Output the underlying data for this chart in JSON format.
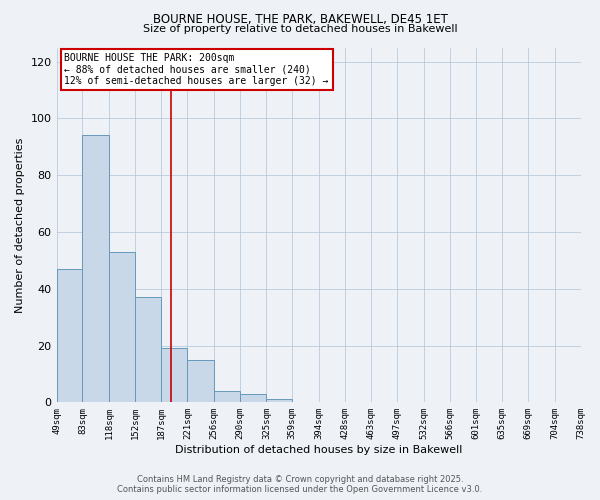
{
  "title1": "BOURNE HOUSE, THE PARK, BAKEWELL, DE45 1ET",
  "title2": "Size of property relative to detached houses in Bakewell",
  "xlabel": "Distribution of detached houses by size in Bakewell",
  "ylabel": "Number of detached properties",
  "bin_edges": [
    49,
    83,
    118,
    152,
    187,
    221,
    256,
    290,
    325,
    359,
    394,
    428,
    463,
    497,
    532,
    566,
    601,
    635,
    669,
    704,
    738
  ],
  "bar_heights": [
    47,
    94,
    53,
    37,
    19,
    15,
    4,
    3,
    1,
    0,
    0,
    0,
    0,
    0,
    0,
    0,
    0,
    0,
    0,
    0
  ],
  "bar_color": "#c8d8e8",
  "bar_edge_color": "#6699bb",
  "vline_x": 200,
  "vline_color": "#cc0000",
  "ylim": [
    0,
    125
  ],
  "yticks": [
    0,
    20,
    40,
    60,
    80,
    100,
    120
  ],
  "annotation_title": "BOURNE HOUSE THE PARK: 200sqm",
  "annotation_line2": "← 88% of detached houses are smaller (240)",
  "annotation_line3": "12% of semi-detached houses are larger (32) →",
  "footer1": "Contains HM Land Registry data © Crown copyright and database right 2025.",
  "footer2": "Contains public sector information licensed under the Open Government Licence v3.0.",
  "bg_color": "#eef2f7",
  "plot_bg_color": "#eef2f7",
  "grid_color": "#b0c4d8",
  "annotation_font_size": 7.0,
  "title1_fontsize": 8.5,
  "title2_fontsize": 8.0,
  "xlabel_fontsize": 8.0,
  "ylabel_fontsize": 8.0,
  "xtick_fontsize": 6.5,
  "ytick_fontsize": 8.0,
  "footer_fontsize": 6.0
}
